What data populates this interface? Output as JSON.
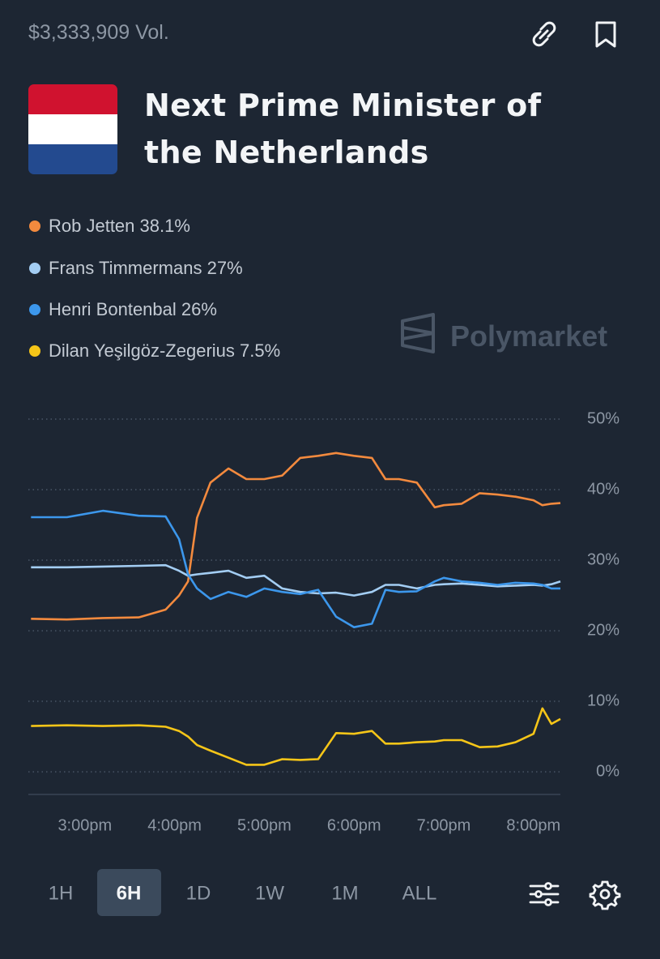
{
  "header": {
    "volume": "$3,333,909 Vol.",
    "title": "Next Prime Minister of the Netherlands"
  },
  "brand": "Polymarket",
  "chart_data": {
    "type": "line",
    "x": [
      14.4,
      14.8,
      15.2,
      15.6,
      15.9,
      16.05,
      16.15,
      16.25,
      16.4,
      16.6,
      16.8,
      17.0,
      17.2,
      17.4,
      17.6,
      17.8,
      18.0,
      18.2,
      18.35,
      18.5,
      18.7,
      18.9,
      19.0,
      19.2,
      19.4,
      19.6,
      19.8,
      20.0,
      20.1,
      20.2,
      20.3
    ],
    "series": [
      {
        "name": "Rob Jetten",
        "last_label": "38.1%",
        "color": "#f38a3e",
        "values": [
          21.7,
          21.6,
          21.8,
          21.9,
          23,
          25,
          27,
          36,
          41,
          43,
          41.5,
          41.5,
          42,
          44.5,
          44.8,
          45.2,
          44.8,
          44.5,
          41.5,
          41.5,
          41,
          37.5,
          37.8,
          38,
          39.5,
          39.3,
          39,
          38.5,
          37.8,
          38,
          38.1
        ]
      },
      {
        "name": "Frans Timmermans",
        "last_label": "27%",
        "color": "#a3cdf3",
        "values": [
          29,
          29,
          29.1,
          29.2,
          29.3,
          28.5,
          27.8,
          28,
          28.2,
          28.5,
          27.5,
          27.8,
          26,
          25.5,
          25.3,
          25.4,
          25,
          25.5,
          26.5,
          26.5,
          26,
          26.5,
          26.6,
          26.7,
          26.5,
          26.3,
          26.4,
          26.5,
          26.4,
          26.6,
          27
        ]
      },
      {
        "name": "Henri Bontenbal",
        "last_label": "26%",
        "color": "#3c97ec",
        "values": [
          36.1,
          36.1,
          37,
          36.3,
          36.2,
          33,
          28,
          26,
          24.5,
          25.5,
          24.8,
          26,
          25.5,
          25.2,
          25.8,
          22,
          20.5,
          21,
          25.8,
          25.5,
          25.6,
          27,
          27.5,
          27,
          26.8,
          26.5,
          26.8,
          26.7,
          26.5,
          26,
          26
        ]
      },
      {
        "name": "Dilan Yeşilgöz-Zegerius",
        "last_label": "7.5%",
        "color": "#f5c518",
        "values": [
          6.5,
          6.6,
          6.5,
          6.6,
          6.4,
          5.8,
          5,
          3.8,
          3,
          2,
          1,
          1,
          1.8,
          1.7,
          1.8,
          5.5,
          5.4,
          5.8,
          4,
          4,
          4.2,
          4.3,
          4.5,
          4.5,
          3.5,
          3.6,
          4.2,
          5.4,
          9,
          6.8,
          7.5
        ]
      }
    ],
    "xlim": [
      14.37,
      20.3
    ],
    "xticks": [
      {
        "value": 15,
        "label": "3:00pm"
      },
      {
        "value": 16,
        "label": "4:00pm"
      },
      {
        "value": 17,
        "label": "5:00pm"
      },
      {
        "value": 18,
        "label": "6:00pm"
      },
      {
        "value": 19,
        "label": "7:00pm"
      },
      {
        "value": 20,
        "label": "8:00pm"
      }
    ],
    "ylim": [
      -3.2,
      50
    ],
    "yticks": [
      {
        "value": 0,
        "label": "0%"
      },
      {
        "value": 10,
        "label": "10%"
      },
      {
        "value": 20,
        "label": "20%"
      },
      {
        "value": 30,
        "label": "30%"
      },
      {
        "value": 40,
        "label": "40%"
      },
      {
        "value": 50,
        "label": "50%"
      }
    ],
    "grid": true
  },
  "ranges": {
    "options": [
      "1H",
      "6H",
      "1D",
      "1W",
      "1M",
      "ALL"
    ],
    "selected": "6H"
  }
}
